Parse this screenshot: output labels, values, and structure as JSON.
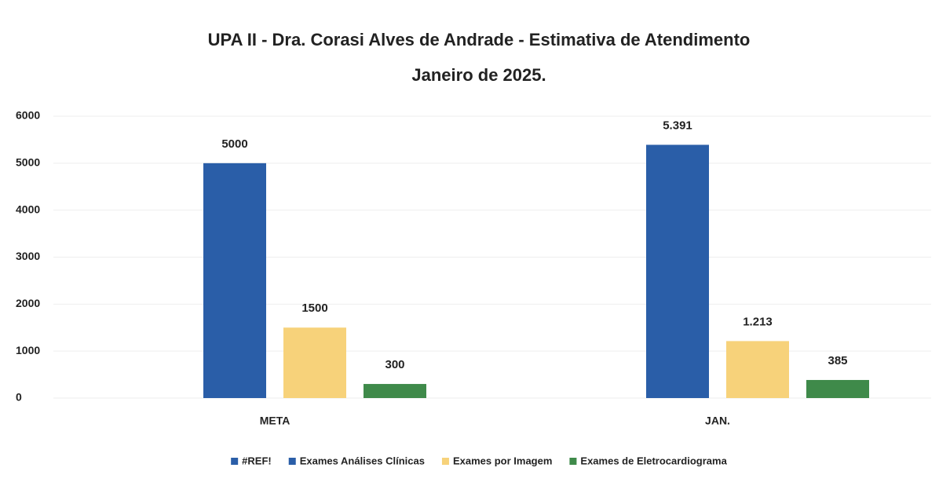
{
  "chart_data": {
    "type": "bar",
    "title": "UPA II - Dra. Corasi Alves de Andrade - Estimativa de Atendimento",
    "subtitle": "Janeiro de 2025.",
    "categories": [
      "META",
      "JAN."
    ],
    "series": [
      {
        "name": "#REF!",
        "color": "#2a5ea8",
        "values": [
          null,
          null
        ]
      },
      {
        "name": "Exames Análises Clínicas",
        "color": "#2a5ea8",
        "values": [
          5000,
          5391
        ],
        "value_labels": [
          "5000",
          "5.391"
        ]
      },
      {
        "name": "Exames por Imagem",
        "color": "#f7d27a",
        "values": [
          1500,
          1213
        ],
        "value_labels": [
          "1500",
          "1.213"
        ]
      },
      {
        "name": "Exames de Eletrocardiograma",
        "color": "#3f8a4a",
        "values": [
          300,
          385
        ],
        "value_labels": [
          "300",
          "385"
        ]
      }
    ],
    "ylim": [
      0,
      6000
    ],
    "yticks": [
      0,
      1000,
      2000,
      3000,
      4000,
      5000,
      6000
    ],
    "grid": true,
    "legend": "bottom"
  }
}
